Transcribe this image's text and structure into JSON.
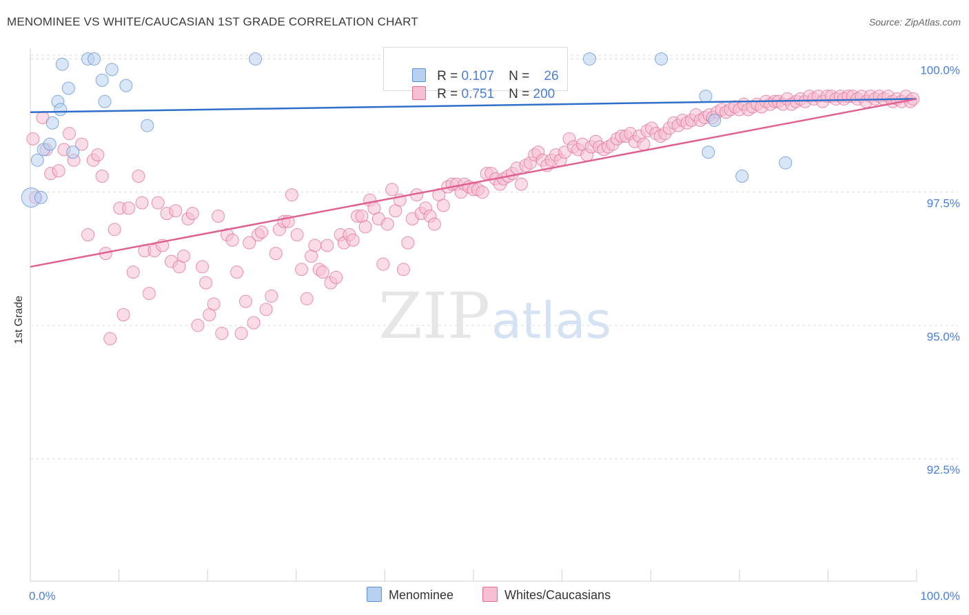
{
  "title": "MENOMINEE VS WHITE/CAUCASIAN 1ST GRADE CORRELATION CHART",
  "source": "Source: ZipAtlas.com",
  "watermark": {
    "zip": "ZIP",
    "atlas": "atlas"
  },
  "legend": {
    "series1": {
      "r_label": "R = ",
      "r_value": "0.107",
      "n_label": "N = ",
      "n_value": "26"
    },
    "series2": {
      "r_label": "R = ",
      "r_value": "0.751",
      "n_label": "N = ",
      "n_value": "200"
    }
  },
  "bottom_legend": {
    "series1": "Menominee",
    "series2": "Whites/Caucasians"
  },
  "chart_data": {
    "type": "scatter",
    "ylabel": "1st Grade",
    "xlabel": "",
    "xlim": [
      0,
      100
    ],
    "ylim": [
      90.2,
      100.2
    ],
    "x_tick_labels": [
      "0.0%",
      "100.0%"
    ],
    "y_ticks": [
      92.5,
      95.0,
      97.5,
      100.0
    ],
    "y_tick_labels": [
      "92.5%",
      "95.0%",
      "97.5%",
      "100.0%"
    ],
    "colors": {
      "series1": "#5b8fd6",
      "series1_fill": "#b9d1f0",
      "series2": "#e36b97",
      "series2_fill": "#f6bfd2",
      "tick_label": "#4a7fd4",
      "grid": "#dedede"
    },
    "series": [
      {
        "name": "Menominee",
        "r": 0.107,
        "n": 26,
        "trend": [
          [
            0,
            99.0
          ],
          [
            100,
            99.25
          ]
        ],
        "points": [
          [
            0.1,
            97.4
          ],
          [
            0.8,
            98.1
          ],
          [
            1.2,
            97.4
          ],
          [
            1.5,
            98.3
          ],
          [
            2.2,
            98.4
          ],
          [
            2.5,
            98.8
          ],
          [
            3.1,
            99.2
          ],
          [
            3.4,
            99.05
          ],
          [
            3.6,
            99.9
          ],
          [
            4.3,
            99.45
          ],
          [
            4.8,
            98.25
          ],
          [
            6.5,
            100.0
          ],
          [
            7.2,
            100.0
          ],
          [
            8.1,
            99.6
          ],
          [
            8.4,
            99.2
          ],
          [
            9.2,
            99.8
          ],
          [
            10.8,
            99.5
          ],
          [
            13.2,
            98.75
          ],
          [
            25.4,
            100.0
          ],
          [
            63.1,
            100.0
          ],
          [
            71.2,
            100.0
          ],
          [
            76.2,
            99.3
          ],
          [
            77.2,
            98.85
          ],
          [
            76.5,
            98.25
          ],
          [
            80.3,
            97.8
          ],
          [
            85.2,
            98.05
          ]
        ]
      },
      {
        "name": "Whites/Caucasians",
        "r": 0.751,
        "n": 200,
        "trend": [
          [
            0,
            96.1
          ],
          [
            100,
            99.25
          ]
        ],
        "points": [
          [
            0.3,
            98.5
          ],
          [
            0.6,
            97.4
          ],
          [
            1.4,
            98.9
          ],
          [
            1.8,
            98.3
          ],
          [
            2.3,
            97.85
          ],
          [
            3.2,
            97.9
          ],
          [
            3.8,
            98.3
          ],
          [
            4.4,
            98.6
          ],
          [
            4.9,
            98.1
          ],
          [
            5.8,
            98.4
          ],
          [
            6.5,
            96.7
          ],
          [
            7.1,
            98.1
          ],
          [
            7.6,
            98.2
          ],
          [
            8.1,
            97.8
          ],
          [
            8.5,
            96.35
          ],
          [
            9.0,
            94.75
          ],
          [
            9.5,
            96.8
          ],
          [
            10.1,
            97.2
          ],
          [
            10.5,
            95.2
          ],
          [
            11.1,
            97.2
          ],
          [
            11.6,
            96.0
          ],
          [
            12.2,
            97.8
          ],
          [
            12.6,
            97.3
          ],
          [
            12.9,
            96.4
          ],
          [
            13.4,
            95.6
          ],
          [
            14.0,
            96.4
          ],
          [
            14.4,
            97.3
          ],
          [
            14.9,
            96.5
          ],
          [
            15.4,
            97.1
          ],
          [
            15.9,
            96.2
          ],
          [
            16.4,
            97.15
          ],
          [
            16.8,
            96.1
          ],
          [
            17.3,
            96.3
          ],
          [
            17.8,
            97.0
          ],
          [
            18.3,
            97.1
          ],
          [
            18.9,
            95.0
          ],
          [
            19.4,
            96.1
          ],
          [
            19.8,
            95.8
          ],
          [
            20.2,
            95.2
          ],
          [
            20.7,
            95.4
          ],
          [
            21.2,
            97.05
          ],
          [
            21.6,
            94.85
          ],
          [
            22.2,
            96.7
          ],
          [
            22.8,
            96.6
          ],
          [
            23.3,
            96.0
          ],
          [
            23.8,
            94.85
          ],
          [
            24.3,
            95.45
          ],
          [
            24.7,
            96.55
          ],
          [
            25.2,
            95.05
          ],
          [
            25.7,
            96.7
          ],
          [
            26.1,
            96.75
          ],
          [
            26.6,
            95.3
          ],
          [
            27.2,
            95.55
          ],
          [
            27.7,
            96.35
          ],
          [
            28.1,
            96.8
          ],
          [
            28.6,
            96.95
          ],
          [
            29.1,
            96.95
          ],
          [
            29.5,
            97.45
          ],
          [
            30.1,
            96.7
          ],
          [
            30.6,
            96.05
          ],
          [
            31.2,
            95.5
          ],
          [
            31.7,
            96.3
          ],
          [
            32.1,
            96.5
          ],
          [
            32.6,
            96.05
          ],
          [
            33.0,
            96.0
          ],
          [
            33.5,
            96.5
          ],
          [
            33.9,
            95.8
          ],
          [
            34.5,
            95.9
          ],
          [
            35.0,
            96.7
          ],
          [
            35.4,
            96.55
          ],
          [
            36.0,
            96.7
          ],
          [
            36.4,
            96.6
          ],
          [
            36.9,
            97.05
          ],
          [
            37.4,
            97.05
          ],
          [
            37.8,
            96.85
          ],
          [
            38.3,
            97.35
          ],
          [
            38.8,
            97.2
          ],
          [
            39.3,
            97.0
          ],
          [
            39.8,
            96.15
          ],
          [
            40.3,
            96.9
          ],
          [
            40.8,
            97.55
          ],
          [
            41.2,
            97.15
          ],
          [
            41.7,
            97.35
          ],
          [
            42.1,
            96.05
          ],
          [
            42.6,
            96.55
          ],
          [
            43.1,
            97.0
          ],
          [
            43.6,
            97.45
          ],
          [
            44.1,
            97.1
          ],
          [
            44.6,
            97.2
          ],
          [
            45.1,
            97.05
          ],
          [
            45.6,
            96.9
          ],
          [
            46.1,
            97.45
          ],
          [
            46.6,
            97.25
          ],
          [
            47.1,
            97.6
          ],
          [
            47.6,
            97.65
          ],
          [
            48.1,
            97.65
          ],
          [
            48.6,
            97.5
          ],
          [
            49.0,
            97.65
          ],
          [
            49.5,
            97.6
          ],
          [
            50.0,
            97.55
          ],
          [
            50.5,
            97.55
          ],
          [
            51.0,
            97.5
          ],
          [
            51.5,
            97.85
          ],
          [
            52.0,
            97.85
          ],
          [
            52.5,
            97.75
          ],
          [
            53.0,
            97.65
          ],
          [
            53.4,
            97.75
          ],
          [
            53.9,
            97.8
          ],
          [
            54.4,
            97.85
          ],
          [
            54.9,
            97.95
          ],
          [
            55.4,
            97.65
          ],
          [
            55.9,
            98.0
          ],
          [
            56.4,
            98.05
          ],
          [
            56.9,
            98.2
          ],
          [
            57.3,
            98.25
          ],
          [
            57.8,
            98.1
          ],
          [
            58.3,
            98.0
          ],
          [
            58.8,
            98.1
          ],
          [
            59.3,
            98.2
          ],
          [
            59.8,
            98.1
          ],
          [
            60.3,
            98.25
          ],
          [
            60.8,
            98.5
          ],
          [
            61.3,
            98.35
          ],
          [
            61.8,
            98.3
          ],
          [
            62.3,
            98.4
          ],
          [
            62.8,
            98.2
          ],
          [
            63.3,
            98.35
          ],
          [
            63.8,
            98.45
          ],
          [
            64.2,
            98.35
          ],
          [
            64.7,
            98.3
          ],
          [
            65.2,
            98.35
          ],
          [
            65.7,
            98.4
          ],
          [
            66.2,
            98.5
          ],
          [
            66.7,
            98.55
          ],
          [
            67.2,
            98.55
          ],
          [
            67.7,
            98.6
          ],
          [
            68.2,
            98.45
          ],
          [
            68.7,
            98.55
          ],
          [
            69.2,
            98.4
          ],
          [
            69.6,
            98.65
          ],
          [
            70.1,
            98.7
          ],
          [
            70.6,
            98.6
          ],
          [
            71.1,
            98.55
          ],
          [
            71.6,
            98.6
          ],
          [
            72.1,
            98.7
          ],
          [
            72.6,
            98.8
          ],
          [
            73.1,
            98.75
          ],
          [
            73.6,
            98.85
          ],
          [
            74.1,
            98.8
          ],
          [
            74.6,
            98.85
          ],
          [
            75.1,
            98.95
          ],
          [
            75.6,
            98.85
          ],
          [
            76.1,
            98.9
          ],
          [
            76.6,
            98.95
          ],
          [
            77.0,
            98.9
          ],
          [
            77.5,
            99.0
          ],
          [
            78.0,
            99.05
          ],
          [
            78.5,
            99.0
          ],
          [
            79.0,
            99.05
          ],
          [
            79.5,
            99.1
          ],
          [
            80.0,
            99.05
          ],
          [
            80.5,
            99.15
          ],
          [
            81.0,
            99.05
          ],
          [
            81.5,
            99.1
          ],
          [
            82.0,
            99.15
          ],
          [
            82.5,
            99.1
          ],
          [
            83.0,
            99.2
          ],
          [
            83.5,
            99.15
          ],
          [
            84.0,
            99.2
          ],
          [
            84.4,
            99.2
          ],
          [
            84.9,
            99.15
          ],
          [
            85.4,
            99.25
          ],
          [
            85.9,
            99.15
          ],
          [
            86.4,
            99.2
          ],
          [
            86.9,
            99.25
          ],
          [
            87.4,
            99.2
          ],
          [
            87.9,
            99.3
          ],
          [
            88.4,
            99.25
          ],
          [
            88.9,
            99.3
          ],
          [
            89.4,
            99.2
          ],
          [
            89.9,
            99.3
          ],
          [
            90.4,
            99.3
          ],
          [
            90.9,
            99.25
          ],
          [
            91.4,
            99.3
          ],
          [
            91.8,
            99.25
          ],
          [
            92.3,
            99.3
          ],
          [
            92.8,
            99.3
          ],
          [
            93.3,
            99.25
          ],
          [
            93.8,
            99.3
          ],
          [
            94.3,
            99.2
          ],
          [
            94.8,
            99.3
          ],
          [
            95.3,
            99.25
          ],
          [
            95.8,
            99.3
          ],
          [
            96.3,
            99.25
          ],
          [
            96.8,
            99.3
          ],
          [
            97.3,
            99.2
          ],
          [
            97.8,
            99.25
          ],
          [
            98.3,
            99.2
          ],
          [
            98.8,
            99.3
          ],
          [
            99.3,
            99.2
          ],
          [
            99.6,
            99.25
          ]
        ]
      }
    ]
  }
}
